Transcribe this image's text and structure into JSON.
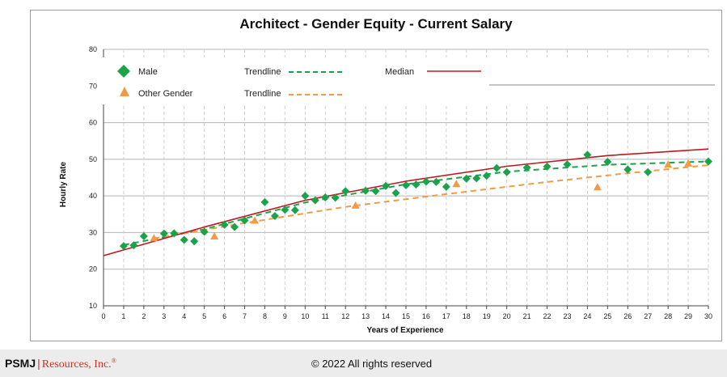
{
  "chart_data": {
    "type": "scatter",
    "title": "Architect - Gender Equity - Current Salary",
    "xlabel": "Years of Experience",
    "ylabel": "Hourly Rate",
    "xlim": [
      0,
      30
    ],
    "ylim": [
      10,
      80
    ],
    "x_ticks": [
      "0",
      "1",
      "2",
      "3",
      "4",
      "5",
      "6",
      "7",
      "8",
      "9",
      "10",
      "11",
      "12",
      "13",
      "14",
      "15",
      "16",
      "17",
      "18",
      "19",
      "20",
      "21",
      "22",
      "23",
      "24",
      "25",
      "26",
      "27",
      "28",
      "29",
      "30"
    ],
    "y_ticks": [
      "10",
      "20",
      "30",
      "40",
      "50",
      "60",
      "70",
      "80"
    ],
    "grid": true,
    "legend_placement": "top-left",
    "legend": {
      "male": "Male",
      "other": "Other Gender",
      "trend_male": "Trendline",
      "trend_other": "Trendline",
      "median": "Median"
    },
    "series": [
      {
        "name": "Male",
        "marker": "diamond",
        "color": "#1aa34a",
        "points": [
          [
            1,
            26.3
          ],
          [
            1.5,
            26.5
          ],
          [
            2,
            29
          ],
          [
            3,
            29.7
          ],
          [
            3.5,
            29.8
          ],
          [
            4,
            28
          ],
          [
            4.5,
            27.6
          ],
          [
            5,
            30.2
          ],
          [
            6,
            32.1
          ],
          [
            6.5,
            31.5
          ],
          [
            7,
            33.3
          ],
          [
            8,
            38.3
          ],
          [
            8.5,
            34.5
          ],
          [
            9,
            36.2
          ],
          [
            9.5,
            36.1
          ],
          [
            10,
            40
          ],
          [
            10.5,
            38.8
          ],
          [
            11,
            39.6
          ],
          [
            11.5,
            39.5
          ],
          [
            12,
            41.3
          ],
          [
            13,
            41.4
          ],
          [
            13.5,
            41.3
          ],
          [
            14,
            42.7
          ],
          [
            14.5,
            40.8
          ],
          [
            15,
            42.9
          ],
          [
            15.5,
            43.1
          ],
          [
            16,
            43.9
          ],
          [
            16.5,
            43.8
          ],
          [
            17,
            42.5
          ],
          [
            18,
            44.7
          ],
          [
            18.5,
            44.8
          ],
          [
            19,
            45.5
          ],
          [
            19.5,
            47.6
          ],
          [
            20,
            46.5
          ],
          [
            21,
            47.7
          ],
          [
            22,
            48
          ],
          [
            23,
            48.6
          ],
          [
            24,
            51.2
          ],
          [
            25,
            49.3
          ],
          [
            26,
            47.2
          ],
          [
            27,
            46.5
          ],
          [
            30,
            49.4
          ]
        ]
      },
      {
        "name": "Other Gender",
        "marker": "triangle",
        "color": "#f39a45",
        "points": [
          [
            2.5,
            28.5
          ],
          [
            5.5,
            29
          ],
          [
            7.5,
            33.3
          ],
          [
            12.5,
            37.4
          ],
          [
            17.5,
            43.3
          ],
          [
            24.5,
            42.4
          ],
          [
            28,
            48.6
          ],
          [
            29,
            48.9
          ]
        ]
      }
    ],
    "trendlines": [
      {
        "name": "Male Trendline",
        "style": "dashed",
        "color": "#1aa34a",
        "points": [
          [
            1,
            26.6
          ],
          [
            5,
            30.9
          ],
          [
            10,
            38.2
          ],
          [
            15,
            43.2
          ],
          [
            20,
            46.6
          ],
          [
            25,
            48.5
          ],
          [
            30,
            49.4
          ]
        ]
      },
      {
        "name": "Other Gender Trendline",
        "style": "dashed",
        "color": "#f39a45",
        "points": [
          [
            2.5,
            28.4
          ],
          [
            7,
            32.6
          ],
          [
            12,
            37
          ],
          [
            17,
            40.5
          ],
          [
            22,
            43.8
          ],
          [
            26,
            46.2
          ],
          [
            30,
            48.4
          ]
        ]
      },
      {
        "name": "Median",
        "style": "solid",
        "color": "#c0181f",
        "points": [
          [
            0,
            23.7
          ],
          [
            5,
            31.5
          ],
          [
            10,
            38.8
          ],
          [
            15,
            44
          ],
          [
            20,
            48.1
          ],
          [
            25,
            51
          ],
          [
            30,
            52.8
          ]
        ]
      }
    ]
  },
  "footer": {
    "brand_strong": "PSMJ",
    "brand_sep": "|",
    "brand_light": "Resources, Inc.",
    "brand_mark": "®",
    "copyright": "© 2022 All rights reserved"
  }
}
